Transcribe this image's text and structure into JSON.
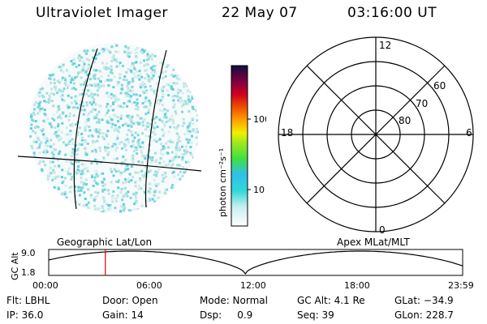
{
  "header": {
    "instrument": "Ultraviolet Imager",
    "date": "22 May 07",
    "time": "03:16:00 UT"
  },
  "colorbar": {
    "unit_label": "photon cm⁻²s⁻¹",
    "ticks": [
      "100",
      "10"
    ]
  },
  "polar_plot": {
    "mlt_labels": {
      "top": "12",
      "right": "6",
      "bottom": "0",
      "left": "18"
    },
    "lat_labels": [
      "60",
      "70",
      "80"
    ]
  },
  "captions": {
    "left": "Geographic Lat/Lon",
    "right": "Apex MLat/MLT"
  },
  "timeline": {
    "ylabel": "GC Alt",
    "y_ticks": [
      "9.0",
      "1.8"
    ],
    "x_ticks": [
      "00:00",
      "06:00",
      "12:00",
      "18:00",
      "23:59"
    ],
    "current_time_fraction": 0.1368,
    "marker_color": "#dd0000"
  },
  "status": {
    "flt": "Flt: LBHL",
    "ip": "IP: 36.0",
    "door": "Door: Open",
    "gain": "Gain: 14",
    "mode": "Mode: Normal",
    "dsp": "Dsp:     0.9",
    "gc_alt": "GC Alt: 4.1 Re",
    "seq": "Seq: 39",
    "glat": "GLat: −34.9",
    "glon": "GLon: 228.7"
  }
}
